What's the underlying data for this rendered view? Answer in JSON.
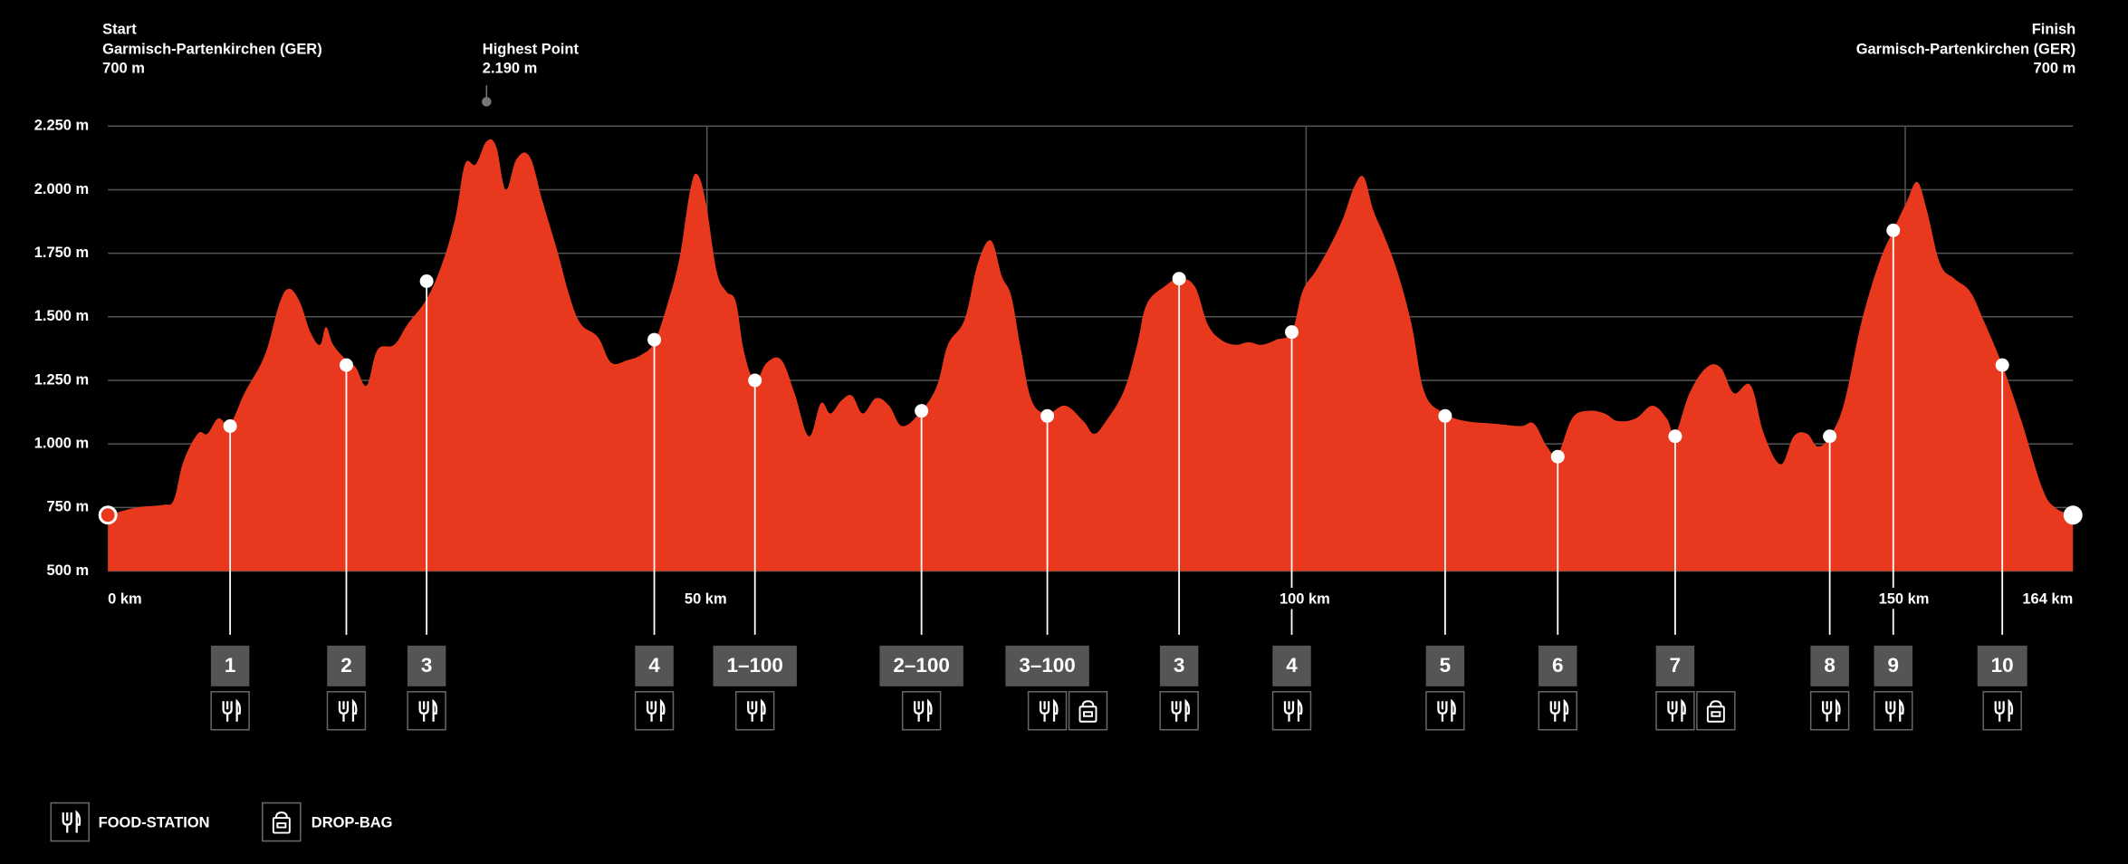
{
  "chart_data": {
    "type": "area",
    "color": "#e8391f",
    "grid": true,
    "xlim": [
      0,
      164
    ],
    "xticks": [
      {
        "value": 0,
        "label": "0 km"
      },
      {
        "value": 50,
        "label": "50 km"
      },
      {
        "value": 100,
        "label": "100 km"
      },
      {
        "value": 150,
        "label": "150 km"
      },
      {
        "value": 164,
        "label": "164 km"
      }
    ],
    "ylim": [
      500,
      2250
    ],
    "yticks": [
      {
        "value": 500,
        "label": "500 m"
      },
      {
        "value": 750,
        "label": "750 m"
      },
      {
        "value": 1000,
        "label": "1.000 m"
      },
      {
        "value": 1250,
        "label": "1.250 m"
      },
      {
        "value": 1500,
        "label": "1.500 m"
      },
      {
        "value": 1750,
        "label": "1.750 m"
      },
      {
        "value": 2000,
        "label": "2.000 m"
      },
      {
        "value": 2250,
        "label": "2.250 m"
      }
    ],
    "x": [
      0,
      2.4,
      4.6,
      5.5,
      6.3,
      7.5,
      8.3,
      9.2,
      10.2,
      11.4,
      13.1,
      14.3,
      15.1,
      16.0,
      16.9,
      17.7,
      18.2,
      18.8,
      19.9,
      20.7,
      21.6,
      22.5,
      23.9,
      25.0,
      26.6,
      27.9,
      29.0,
      29.8,
      30.7,
      31.6,
      32.4,
      33.2,
      34.1,
      35.2,
      36.3,
      37.5,
      38.6,
      39.5,
      40.9,
      42.0,
      43.4,
      44.5,
      45.6,
      46.7,
      47.7,
      48.6,
      49.2,
      49.9,
      50.8,
      51.6,
      52.4,
      53.1,
      54.0,
      55.0,
      56.2,
      57.3,
      58.5,
      59.5,
      60.3,
      61.2,
      62.1,
      63.0,
      64.1,
      65.2,
      66.3,
      67.9,
      69.2,
      70.1,
      71.5,
      72.6,
      73.7,
      74.6,
      75.4,
      76.2,
      77.1,
      78.4,
      79.9,
      81.4,
      82.3,
      83.3,
      84.8,
      85.9,
      86.7,
      88.2,
      89.4,
      90.7,
      91.8,
      92.9,
      94.1,
      95.2,
      96.3,
      97.5,
      98.8,
      99.7,
      100.8,
      102.0,
      103.1,
      104.0,
      104.8,
      105.6,
      106.5,
      107.6,
      108.8,
      109.9,
      111.6,
      113.3,
      115.6,
      117.9,
      119.0,
      120.1,
      121.0,
      122.2,
      123.5,
      124.9,
      126.0,
      127.5,
      128.9,
      130.1,
      130.8,
      132.0,
      133.4,
      134.6,
      135.7,
      137.1,
      138.2,
      139.6,
      140.7,
      141.8,
      142.7,
      143.7,
      144.9,
      146.3,
      147.8,
      149.0,
      150.1,
      151.0,
      151.8,
      152.9,
      154.1,
      155.4,
      156.5,
      158.1,
      159.7,
      161.4,
      162.5,
      164
    ],
    "values": [
      720,
      750,
      760,
      780,
      930,
      1040,
      1040,
      1100,
      1080,
      1200,
      1350,
      1550,
      1610,
      1560,
      1440,
      1390,
      1460,
      1390,
      1330,
      1300,
      1230,
      1370,
      1390,
      1470,
      1570,
      1710,
      1890,
      2100,
      2100,
      2190,
      2170,
      2000,
      2120,
      2130,
      1950,
      1760,
      1570,
      1470,
      1420,
      1320,
      1330,
      1350,
      1400,
      1550,
      1730,
      2000,
      2060,
      1950,
      1680,
      1600,
      1560,
      1360,
      1250,
      1320,
      1330,
      1200,
      1030,
      1160,
      1120,
      1170,
      1190,
      1120,
      1180,
      1150,
      1070,
      1130,
      1230,
      1390,
      1490,
      1710,
      1800,
      1660,
      1580,
      1370,
      1170,
      1120,
      1150,
      1090,
      1040,
      1090,
      1210,
      1390,
      1550,
      1620,
      1650,
      1620,
      1470,
      1410,
      1390,
      1400,
      1390,
      1410,
      1440,
      1600,
      1680,
      1780,
      1890,
      2010,
      2050,
      1920,
      1820,
      1680,
      1470,
      1200,
      1120,
      1090,
      1080,
      1070,
      1080,
      990,
      960,
      1100,
      1130,
      1120,
      1090,
      1100,
      1150,
      1100,
      1040,
      1200,
      1300,
      1300,
      1200,
      1230,
      1040,
      920,
      1030,
      1040,
      990,
      1030,
      1160,
      1470,
      1710,
      1840,
      1950,
      2030,
      1920,
      1710,
      1650,
      1600,
      1490,
      1310,
      1090,
      830,
      750,
      720
    ],
    "start": {
      "title": "Start",
      "place": "Garmisch-Partenkirchen (GER)",
      "elevation": "700 m"
    },
    "finish": {
      "title": "Finish",
      "place": "Garmisch-Partenkirchen (GER)",
      "elevation": "700 m"
    },
    "highest_point": {
      "title": "Highest Point",
      "elevation": "2.190 m",
      "x": 31.6
    },
    "stations": [
      {
        "label": "1",
        "x": 10.2,
        "value": 1070,
        "drop_bag": false
      },
      {
        "label": "2",
        "x": 19.9,
        "value": 1310,
        "drop_bag": false
      },
      {
        "label": "3",
        "x": 26.6,
        "value": 1640,
        "drop_bag": false
      },
      {
        "label": "4",
        "x": 45.6,
        "value": 1410,
        "drop_bag": false
      },
      {
        "label": "1–100",
        "x": 54.0,
        "value": 1250,
        "drop_bag": false
      },
      {
        "label": "2–100",
        "x": 67.9,
        "value": 1130,
        "drop_bag": false
      },
      {
        "label": "3–100",
        "x": 78.4,
        "value": 1110,
        "drop_bag": true
      },
      {
        "label": "3",
        "x": 89.4,
        "value": 1650,
        "drop_bag": false
      },
      {
        "label": "4",
        "x": 98.8,
        "value": 1440,
        "drop_bag": false
      },
      {
        "label": "5",
        "x": 111.6,
        "value": 1110,
        "drop_bag": false
      },
      {
        "label": "6",
        "x": 121.0,
        "value": 950,
        "drop_bag": false
      },
      {
        "label": "7",
        "x": 130.8,
        "value": 1030,
        "drop_bag": true
      },
      {
        "label": "8",
        "x": 143.7,
        "value": 1030,
        "drop_bag": false
      },
      {
        "label": "9",
        "x": 149.0,
        "value": 1840,
        "drop_bag": false
      },
      {
        "label": "10",
        "x": 158.1,
        "value": 1310,
        "drop_bag": false
      }
    ],
    "legend": {
      "food": "FOOD-STATION",
      "drop_bag": "DROP-BAG"
    }
  }
}
